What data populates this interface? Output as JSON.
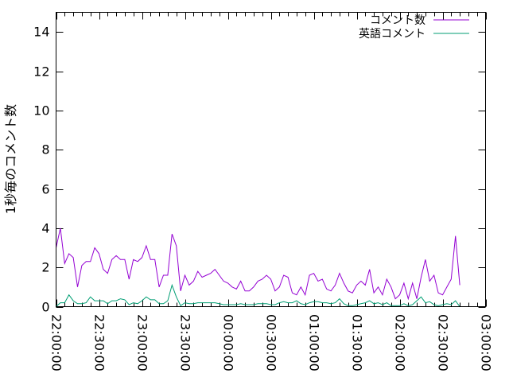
{
  "chart_data": {
    "type": "line",
    "title": "",
    "xlabel": "",
    "ylabel": "1秒毎のコメント数",
    "xlim": [
      "22:00:00",
      "03:00:00"
    ],
    "ylim": [
      0,
      15
    ],
    "x_ticks": [
      "22:00:00",
      "22:30:00",
      "23:00:00",
      "23:30:00",
      "00:00:00",
      "00:30:00",
      "01:00:00",
      "01:30:00",
      "02:00:00",
      "02:30:00",
      "03:00:00"
    ],
    "y_ticks": [
      0,
      2,
      4,
      6,
      8,
      10,
      12,
      14
    ],
    "grid": false,
    "legend_placement": "top-right",
    "x": [
      "22:00",
      "22:03",
      "22:06",
      "22:09",
      "22:12",
      "22:15",
      "22:18",
      "22:21",
      "22:24",
      "22:27",
      "22:30",
      "22:33",
      "22:36",
      "22:39",
      "22:42",
      "22:45",
      "22:48",
      "22:51",
      "22:54",
      "22:57",
      "23:00",
      "23:03",
      "23:06",
      "23:09",
      "23:12",
      "23:15",
      "23:18",
      "23:21",
      "23:24",
      "23:27",
      "23:30",
      "23:33",
      "23:36",
      "23:39",
      "23:42",
      "23:45",
      "23:48",
      "23:51",
      "23:54",
      "23:57",
      "00:00",
      "00:03",
      "00:06",
      "00:09",
      "00:12",
      "00:15",
      "00:18",
      "00:21",
      "00:24",
      "00:27",
      "00:30",
      "00:33",
      "00:36",
      "00:39",
      "00:42",
      "00:45",
      "00:48",
      "00:51",
      "00:54",
      "00:57",
      "01:00",
      "01:03",
      "01:06",
      "01:09",
      "01:12",
      "01:15",
      "01:18",
      "01:21",
      "01:24",
      "01:27",
      "01:30",
      "01:33",
      "01:36",
      "01:39",
      "01:42",
      "01:45",
      "01:48",
      "01:51",
      "01:54",
      "01:57",
      "02:00",
      "02:03",
      "02:06",
      "02:09",
      "02:12",
      "02:15",
      "02:18",
      "02:21",
      "02:24",
      "02:27",
      "02:30",
      "02:33",
      "02:36",
      "02:39",
      "02:42"
    ],
    "series": [
      {
        "name": "コメント数",
        "color": "#9400d3",
        "values": [
          3.0,
          4.0,
          2.2,
          2.7,
          2.5,
          1.0,
          2.1,
          2.3,
          2.3,
          3.0,
          2.7,
          1.9,
          1.7,
          2.4,
          2.6,
          2.4,
          2.4,
          1.4,
          2.4,
          2.3,
          2.5,
          3.1,
          2.4,
          2.4,
          1.0,
          1.6,
          1.6,
          3.7,
          3.1,
          0.8,
          1.6,
          1.1,
          1.3,
          1.8,
          1.5,
          1.6,
          1.7,
          1.9,
          1.6,
          1.3,
          1.2,
          1.0,
          0.9,
          1.3,
          0.8,
          0.8,
          1.0,
          1.3,
          1.4,
          1.6,
          1.4,
          0.8,
          1.0,
          1.6,
          1.5,
          0.7,
          0.6,
          1.0,
          0.6,
          1.6,
          1.7,
          1.3,
          1.4,
          0.9,
          0.8,
          1.1,
          1.7,
          1.2,
          0.8,
          0.7,
          1.1,
          1.3,
          1.1,
          1.9,
          0.7,
          1.0,
          0.6,
          1.4,
          1.0,
          0.4,
          0.6,
          1.2,
          0.4,
          1.2,
          0.4,
          1.5,
          2.4,
          1.3,
          1.6,
          0.7,
          0.6,
          1.0,
          1.4,
          3.6,
          1.1
        ]
      },
      {
        "name": "英語コメント",
        "color": "#009e73",
        "values": [
          0.0,
          0.2,
          0.2,
          0.6,
          0.3,
          0.15,
          0.15,
          0.2,
          0.5,
          0.3,
          0.3,
          0.3,
          0.15,
          0.3,
          0.3,
          0.4,
          0.35,
          0.1,
          0.2,
          0.15,
          0.3,
          0.5,
          0.35,
          0.35,
          0.15,
          0.15,
          0.3,
          1.1,
          0.5,
          0.05,
          0.2,
          0.15,
          0.15,
          0.2,
          0.2,
          0.2,
          0.2,
          0.2,
          0.15,
          0.1,
          0.1,
          0.1,
          0.1,
          0.15,
          0.1,
          0.1,
          0.1,
          0.15,
          0.15,
          0.15,
          0.1,
          0.1,
          0.2,
          0.25,
          0.2,
          0.2,
          0.3,
          0.15,
          0.1,
          0.2,
          0.25,
          0.25,
          0.2,
          0.2,
          0.15,
          0.2,
          0.4,
          0.15,
          0.05,
          0.05,
          0.1,
          0.15,
          0.2,
          0.3,
          0.15,
          0.2,
          0.1,
          0.2,
          0.05,
          0.05,
          0.05,
          0.15,
          0.05,
          0.1,
          0.3,
          0.5,
          0.2,
          0.25,
          0.1,
          0.05,
          0.1,
          0.15,
          0.1,
          0.3,
          0.0
        ]
      }
    ]
  }
}
